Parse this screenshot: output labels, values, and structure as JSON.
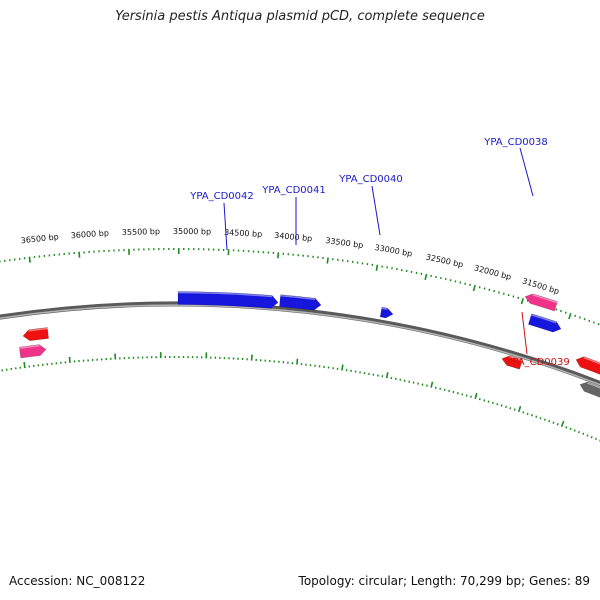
{
  "title": "Yersinia pestis Antiqua plasmid pCD, complete sequence",
  "footer": {
    "accession": "Accession: NC_008122",
    "topology": "Topology: circular; Length: 70,299 bp; Genes: 89"
  },
  "colors": {
    "backbone": "#7a7a7a",
    "ticks": "#1f8a1f",
    "label_forward": "#1a1acc",
    "label_reverse": "#cc1111",
    "gene_blue": "#1616dd",
    "gene_red": "#ee1111",
    "gene_pink": "#ee3388",
    "gene_gray": "#666666"
  },
  "bp_labels": [
    "31500 bp",
    "32000 bp",
    "32500 bp",
    "33000 bp",
    "33500 bp",
    "34000 bp",
    "34500 bp",
    "35000 bp",
    "35500 bp",
    "36000 bp",
    "36500 bp"
  ],
  "gene_labels": [
    {
      "id": "YPA_CD0038",
      "strand": "forward"
    },
    {
      "id": "YPA_CD0039",
      "strand": "reverse"
    },
    {
      "id": "YPA_CD0040",
      "strand": "forward"
    },
    {
      "id": "YPA_CD0041",
      "strand": "forward"
    },
    {
      "id": "YPA_CD0042",
      "strand": "forward"
    }
  ]
}
